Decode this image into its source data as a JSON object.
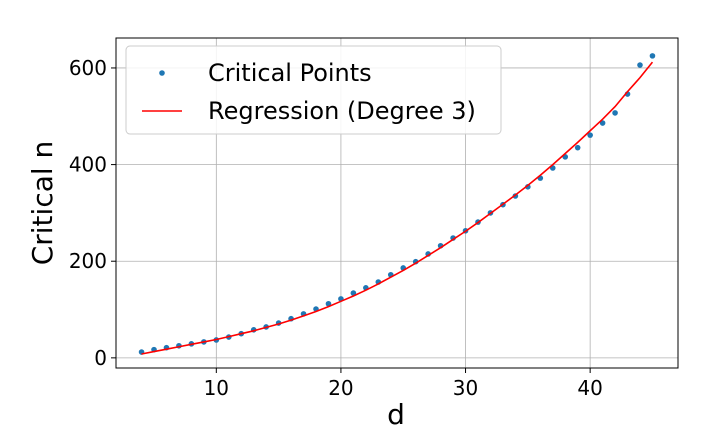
{
  "chart_data": {
    "type": "scatter",
    "xlabel": "d",
    "ylabel": "Critical n",
    "x": [
      4,
      5,
      6,
      7,
      8,
      9,
      10,
      11,
      12,
      13,
      14,
      15,
      16,
      17,
      18,
      19,
      20,
      21,
      22,
      23,
      24,
      25,
      26,
      27,
      28,
      29,
      30,
      31,
      32,
      33,
      34,
      35,
      36,
      37,
      38,
      39,
      40,
      41,
      42,
      43,
      44,
      45
    ],
    "series": [
      {
        "name": "Critical Points",
        "type": "scatter",
        "color": "#1f77b4",
        "values": [
          12,
          17,
          21,
          25,
          29,
          33,
          37,
          43,
          50,
          58,
          64,
          72,
          81,
          91,
          101,
          112,
          122,
          134,
          145,
          157,
          172,
          186,
          199,
          215,
          232,
          248,
          263,
          281,
          300,
          317,
          335,
          354,
          372,
          393,
          416,
          435,
          461,
          486,
          507,
          546,
          606,
          625
        ]
      },
      {
        "name": "Regression (Degree 3)",
        "type": "line",
        "color": "#ff0000",
        "values": [
          8,
          13,
          18,
          23,
          28,
          33,
          38,
          44,
          50,
          56,
          63,
          70,
          78,
          87,
          96,
          106,
          117,
          128,
          140,
          153,
          167,
          181,
          196,
          212,
          228,
          245,
          262,
          280,
          299,
          318,
          337,
          357,
          378,
          400,
          423,
          446,
          470,
          494,
          520,
          551,
          580,
          612
        ]
      }
    ],
    "xlim": [
      1.95,
      47.05
    ],
    "ylim": [
      -21,
      662
    ],
    "xticks": [
      10,
      20,
      30,
      40
    ],
    "yticks": [
      0,
      200,
      400,
      600
    ],
    "grid": true,
    "legend": "upper-left"
  }
}
